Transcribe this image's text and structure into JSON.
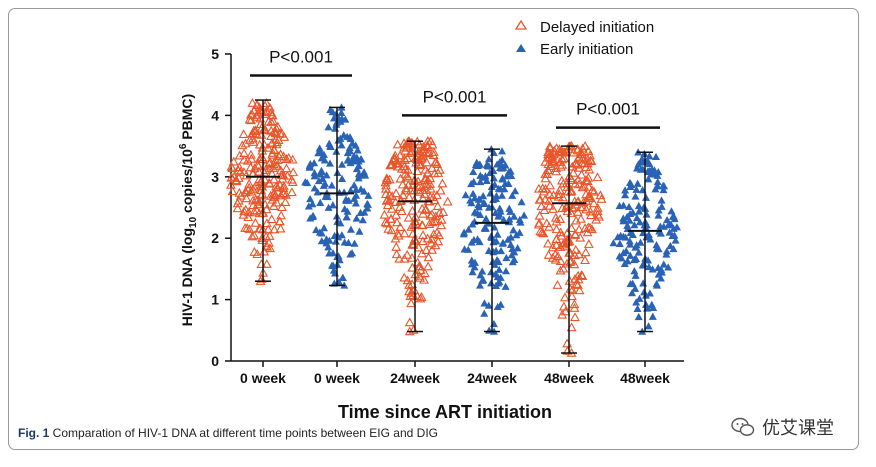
{
  "chart_data": {
    "type": "scatter",
    "title": "",
    "xlabel": "Time since ART initiation",
    "ylabel_parts": [
      "HIV-1 DNA (log",
      "10",
      " copies/10",
      "6",
      " PBMC)"
    ],
    "ylim": [
      0,
      5
    ],
    "yticks": [
      0,
      1,
      2,
      3,
      4,
      5
    ],
    "categories": [
      "0 week",
      "0 week",
      "24week",
      "24week",
      "48week",
      "48week"
    ],
    "series": [
      {
        "name": "Delayed initiation",
        "marker": "open-triangle",
        "color": "#e8562a",
        "categories_index": [
          0,
          2,
          4
        ],
        "groups": [
          {
            "mean": 3.0,
            "sd_low": 1.3,
            "sd_high": 4.25,
            "min": 1.3,
            "max": 4.2,
            "n": 230
          },
          {
            "mean": 2.6,
            "sd_low": 0.48,
            "sd_high": 3.58,
            "min": 0.48,
            "max": 3.58,
            "n": 230
          },
          {
            "mean": 2.57,
            "sd_low": 0.13,
            "sd_high": 3.5,
            "min": 0.13,
            "max": 3.5,
            "n": 230
          }
        ]
      },
      {
        "name": "Early initiation",
        "marker": "filled-triangle",
        "color": "#2a63b6",
        "categories_index": [
          1,
          3,
          5
        ],
        "groups": [
          {
            "mean": 2.73,
            "sd_low": 1.23,
            "sd_high": 4.13,
            "min": 1.23,
            "max": 4.13,
            "n": 160
          },
          {
            "mean": 2.25,
            "sd_low": 0.48,
            "sd_high": 3.45,
            "min": 0.48,
            "max": 3.45,
            "n": 160
          },
          {
            "mean": 2.12,
            "sd_low": 0.48,
            "sd_high": 3.4,
            "min": 0.48,
            "max": 3.4,
            "n": 160
          }
        ]
      }
    ],
    "annotations": [
      {
        "text": "P<0.001",
        "between": [
          0,
          1
        ],
        "y": 4.65
      },
      {
        "text": "P<0.001",
        "between": [
          2,
          3
        ],
        "y": 4.0
      },
      {
        "text": "P<0.001",
        "between": [
          4,
          5
        ],
        "y": 3.8
      }
    ],
    "legend": {
      "position": "top-right",
      "entries": [
        "Delayed initiation",
        "Early initiation"
      ]
    }
  },
  "caption": {
    "label": "Fig. 1",
    "text": " Comparation of HIV-1 DNA at different time points between EIG and DIG"
  },
  "watermark": {
    "text": "优艾课堂",
    "icon": "wechat-icon"
  }
}
